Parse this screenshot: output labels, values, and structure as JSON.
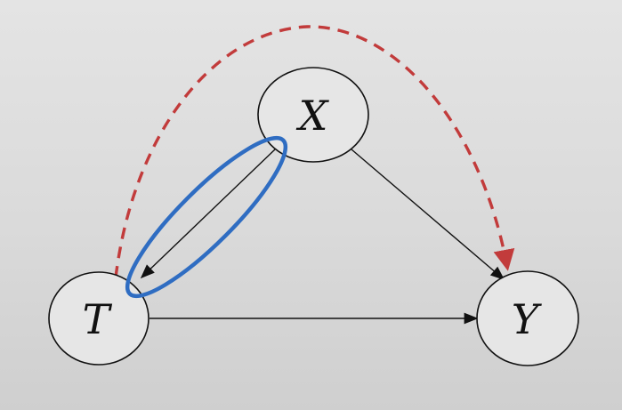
{
  "diagram": {
    "nodes": [
      {
        "id": "X",
        "label": "X"
      },
      {
        "id": "T",
        "label": "T"
      },
      {
        "id": "Y",
        "label": "Y"
      }
    ],
    "edges": [
      {
        "from": "X",
        "to": "T",
        "style": "solid"
      },
      {
        "from": "X",
        "to": "Y",
        "style": "solid"
      },
      {
        "from": "T",
        "to": "Y",
        "style": "solid"
      },
      {
        "from": "T",
        "to": "Y",
        "style": "dashed-curved",
        "color": "#c23b3b"
      }
    ],
    "highlight": {
      "around_edge": "X->T",
      "color": "#2f6dc2"
    },
    "colors": {
      "edge": "#111111",
      "backdoor": "#c23b3b",
      "highlight": "#2f6dc2",
      "node_fill": "#e6e6e6"
    }
  }
}
